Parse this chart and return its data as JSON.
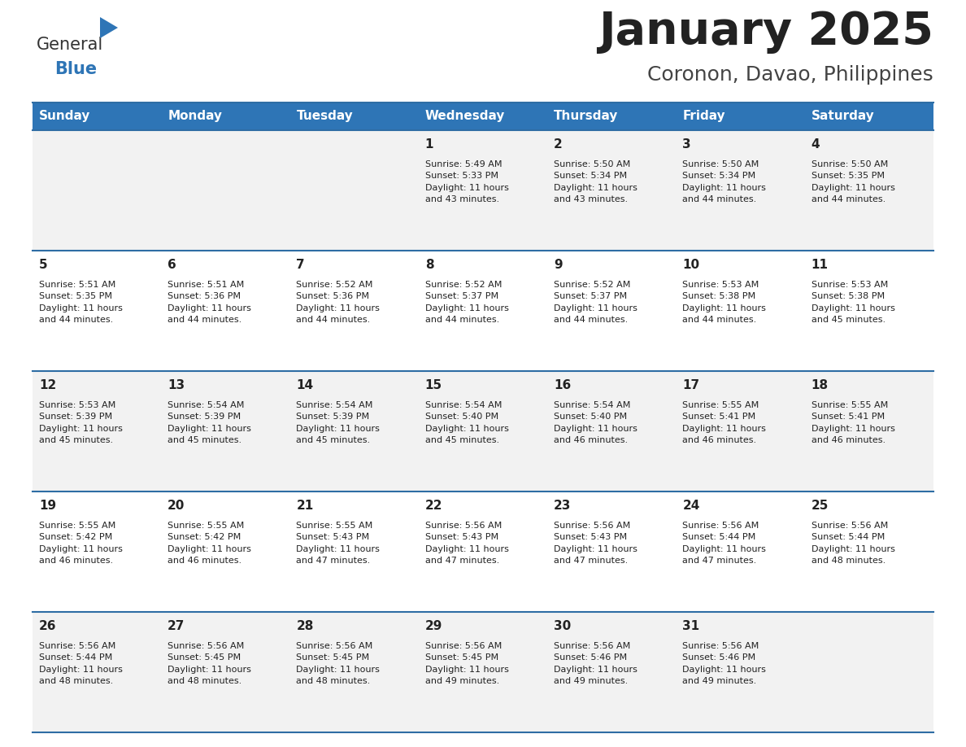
{
  "title": "January 2025",
  "subtitle": "Coronon, Davao, Philippines",
  "header_bg_color": "#2E75B6",
  "header_text_color": "#FFFFFF",
  "weekdays": [
    "Sunday",
    "Monday",
    "Tuesday",
    "Wednesday",
    "Thursday",
    "Friday",
    "Saturday"
  ],
  "row_colors": [
    "#F2F2F2",
    "#FFFFFF"
  ],
  "separator_color": "#2E6DA4",
  "day_number_color": "#222222",
  "day_text_color": "#222222",
  "title_color": "#222222",
  "subtitle_color": "#444444",
  "calendar": [
    [
      {
        "day": "",
        "info": ""
      },
      {
        "day": "",
        "info": ""
      },
      {
        "day": "",
        "info": ""
      },
      {
        "day": "1",
        "info": "Sunrise: 5:49 AM\nSunset: 5:33 PM\nDaylight: 11 hours\nand 43 minutes."
      },
      {
        "day": "2",
        "info": "Sunrise: 5:50 AM\nSunset: 5:34 PM\nDaylight: 11 hours\nand 43 minutes."
      },
      {
        "day": "3",
        "info": "Sunrise: 5:50 AM\nSunset: 5:34 PM\nDaylight: 11 hours\nand 44 minutes."
      },
      {
        "day": "4",
        "info": "Sunrise: 5:50 AM\nSunset: 5:35 PM\nDaylight: 11 hours\nand 44 minutes."
      }
    ],
    [
      {
        "day": "5",
        "info": "Sunrise: 5:51 AM\nSunset: 5:35 PM\nDaylight: 11 hours\nand 44 minutes."
      },
      {
        "day": "6",
        "info": "Sunrise: 5:51 AM\nSunset: 5:36 PM\nDaylight: 11 hours\nand 44 minutes."
      },
      {
        "day": "7",
        "info": "Sunrise: 5:52 AM\nSunset: 5:36 PM\nDaylight: 11 hours\nand 44 minutes."
      },
      {
        "day": "8",
        "info": "Sunrise: 5:52 AM\nSunset: 5:37 PM\nDaylight: 11 hours\nand 44 minutes."
      },
      {
        "day": "9",
        "info": "Sunrise: 5:52 AM\nSunset: 5:37 PM\nDaylight: 11 hours\nand 44 minutes."
      },
      {
        "day": "10",
        "info": "Sunrise: 5:53 AM\nSunset: 5:38 PM\nDaylight: 11 hours\nand 44 minutes."
      },
      {
        "day": "11",
        "info": "Sunrise: 5:53 AM\nSunset: 5:38 PM\nDaylight: 11 hours\nand 45 minutes."
      }
    ],
    [
      {
        "day": "12",
        "info": "Sunrise: 5:53 AM\nSunset: 5:39 PM\nDaylight: 11 hours\nand 45 minutes."
      },
      {
        "day": "13",
        "info": "Sunrise: 5:54 AM\nSunset: 5:39 PM\nDaylight: 11 hours\nand 45 minutes."
      },
      {
        "day": "14",
        "info": "Sunrise: 5:54 AM\nSunset: 5:39 PM\nDaylight: 11 hours\nand 45 minutes."
      },
      {
        "day": "15",
        "info": "Sunrise: 5:54 AM\nSunset: 5:40 PM\nDaylight: 11 hours\nand 45 minutes."
      },
      {
        "day": "16",
        "info": "Sunrise: 5:54 AM\nSunset: 5:40 PM\nDaylight: 11 hours\nand 46 minutes."
      },
      {
        "day": "17",
        "info": "Sunrise: 5:55 AM\nSunset: 5:41 PM\nDaylight: 11 hours\nand 46 minutes."
      },
      {
        "day": "18",
        "info": "Sunrise: 5:55 AM\nSunset: 5:41 PM\nDaylight: 11 hours\nand 46 minutes."
      }
    ],
    [
      {
        "day": "19",
        "info": "Sunrise: 5:55 AM\nSunset: 5:42 PM\nDaylight: 11 hours\nand 46 minutes."
      },
      {
        "day": "20",
        "info": "Sunrise: 5:55 AM\nSunset: 5:42 PM\nDaylight: 11 hours\nand 46 minutes."
      },
      {
        "day": "21",
        "info": "Sunrise: 5:55 AM\nSunset: 5:43 PM\nDaylight: 11 hours\nand 47 minutes."
      },
      {
        "day": "22",
        "info": "Sunrise: 5:56 AM\nSunset: 5:43 PM\nDaylight: 11 hours\nand 47 minutes."
      },
      {
        "day": "23",
        "info": "Sunrise: 5:56 AM\nSunset: 5:43 PM\nDaylight: 11 hours\nand 47 minutes."
      },
      {
        "day": "24",
        "info": "Sunrise: 5:56 AM\nSunset: 5:44 PM\nDaylight: 11 hours\nand 47 minutes."
      },
      {
        "day": "25",
        "info": "Sunrise: 5:56 AM\nSunset: 5:44 PM\nDaylight: 11 hours\nand 48 minutes."
      }
    ],
    [
      {
        "day": "26",
        "info": "Sunrise: 5:56 AM\nSunset: 5:44 PM\nDaylight: 11 hours\nand 48 minutes."
      },
      {
        "day": "27",
        "info": "Sunrise: 5:56 AM\nSunset: 5:45 PM\nDaylight: 11 hours\nand 48 minutes."
      },
      {
        "day": "28",
        "info": "Sunrise: 5:56 AM\nSunset: 5:45 PM\nDaylight: 11 hours\nand 48 minutes."
      },
      {
        "day": "29",
        "info": "Sunrise: 5:56 AM\nSunset: 5:45 PM\nDaylight: 11 hours\nand 49 minutes."
      },
      {
        "day": "30",
        "info": "Sunrise: 5:56 AM\nSunset: 5:46 PM\nDaylight: 11 hours\nand 49 minutes."
      },
      {
        "day": "31",
        "info": "Sunrise: 5:56 AM\nSunset: 5:46 PM\nDaylight: 11 hours\nand 49 minutes."
      },
      {
        "day": "",
        "info": ""
      }
    ]
  ],
  "logo_general_color": "#333333",
  "logo_blue_color": "#2E75B6",
  "figsize": [
    11.88,
    9.18
  ],
  "dpi": 100
}
